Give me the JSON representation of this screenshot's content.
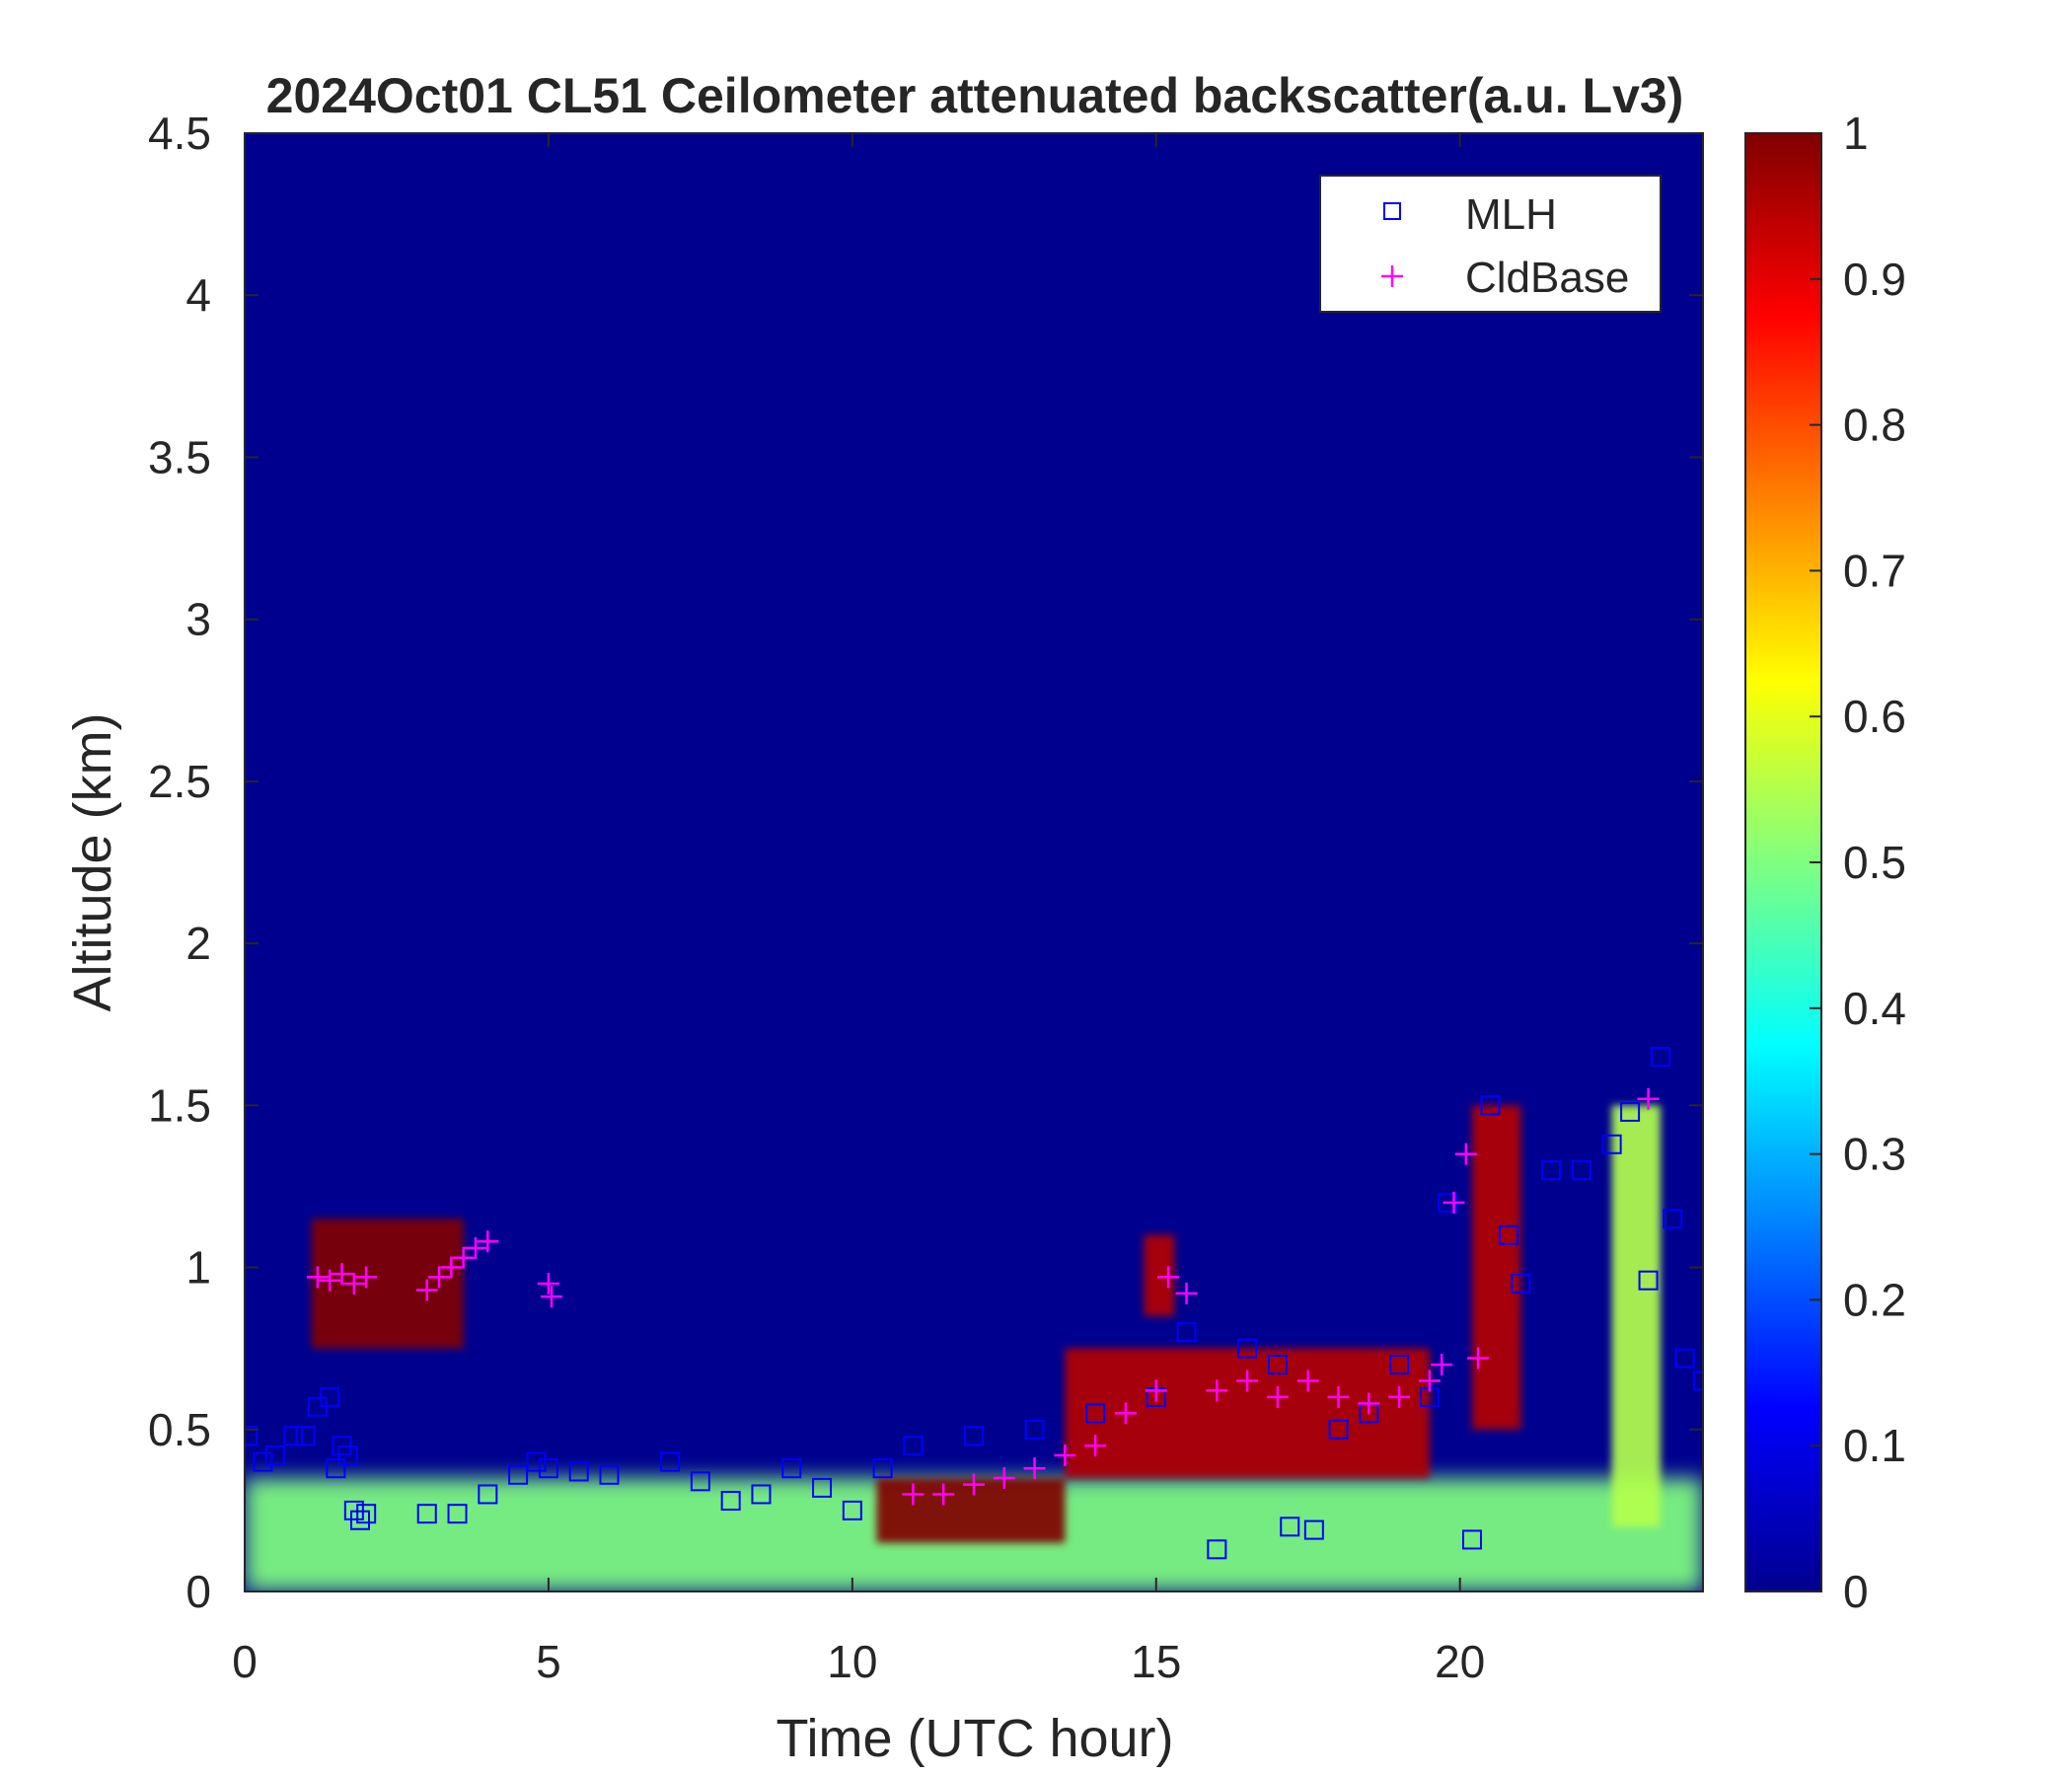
{
  "chart_data": {
    "type": "heatmap",
    "title": "2024Oct01 CL51 Ceilometer attenuated backscatter(a.u. Lv3)",
    "xlabel": "Time (UTC hour)",
    "ylabel": "Altitude (km)",
    "xlim": [
      0,
      24
    ],
    "ylim": [
      0,
      4.5
    ],
    "x_ticks": [
      "0",
      "5",
      "10",
      "15",
      "20"
    ],
    "x_tick_values": [
      0,
      5,
      10,
      15,
      20
    ],
    "y_ticks": [
      "0",
      "0.5",
      "1",
      "1.5",
      "2",
      "2.5",
      "3",
      "3.5",
      "4",
      "4.5"
    ],
    "y_tick_values": [
      0,
      0.5,
      1,
      1.5,
      2,
      2.5,
      3,
      3.5,
      4,
      4.5
    ],
    "colorbar": {
      "colormap": "jet",
      "range": [
        0,
        1
      ],
      "ticks": [
        "0",
        "0.1",
        "0.2",
        "0.3",
        "0.4",
        "0.5",
        "0.6",
        "0.7",
        "0.8",
        "0.9",
        "1"
      ],
      "tick_values": [
        0,
        0.1,
        0.2,
        0.3,
        0.4,
        0.5,
        0.6,
        0.7,
        0.8,
        0.9,
        1
      ]
    },
    "legend": {
      "placement": "top-right",
      "entries": [
        {
          "label": "MLH",
          "marker": "square",
          "color": "#0000ff"
        },
        {
          "label": "CldBase",
          "marker": "plus",
          "color": "#ff00ff"
        }
      ]
    },
    "backscatter_features": [
      {
        "t": [
          0,
          24
        ],
        "z": [
          0,
          0.35
        ],
        "level": 0.5
      },
      {
        "t": [
          1.1,
          3.6
        ],
        "z": [
          0.75,
          1.15
        ],
        "level": 1.0
      },
      {
        "t": [
          10.4,
          13.5
        ],
        "z": [
          0.15,
          0.35
        ],
        "level": 1.0
      },
      {
        "t": [
          13.5,
          19.5
        ],
        "z": [
          0.35,
          0.75
        ],
        "level": 0.95
      },
      {
        "t": [
          14.8,
          15.3
        ],
        "z": [
          0.85,
          1.1
        ],
        "level": 0.95
      },
      {
        "t": [
          20.2,
          21.0
        ],
        "z": [
          0.5,
          1.5
        ],
        "level": 0.95
      },
      {
        "t": [
          22.5,
          23.3
        ],
        "z": [
          0.2,
          1.5
        ],
        "level": 0.55
      }
    ],
    "series": [
      {
        "name": "MLH",
        "marker": "square",
        "color": "#0000ff",
        "x": [
          0.05,
          0.3,
          0.5,
          0.8,
          1.0,
          1.2,
          1.4,
          1.5,
          1.6,
          1.7,
          1.8,
          1.9,
          2.0,
          3.0,
          3.5,
          4.0,
          4.5,
          4.8,
          5.0,
          5.5,
          6.0,
          7.0,
          7.5,
          8.0,
          8.5,
          9.0,
          9.5,
          10.0,
          10.5,
          11.0,
          12.0,
          13.0,
          14.0,
          15.0,
          15.5,
          16.0,
          16.5,
          17.0,
          17.2,
          17.6,
          18.0,
          18.5,
          19.0,
          19.5,
          19.8,
          20.2,
          20.5,
          20.8,
          21.0,
          21.5,
          22.0,
          22.5,
          22.8,
          23.1,
          23.3,
          23.5,
          23.7,
          24.0
        ],
        "y": [
          0.48,
          0.4,
          0.42,
          0.48,
          0.48,
          0.57,
          0.6,
          0.38,
          0.45,
          0.42,
          0.25,
          0.22,
          0.24,
          0.24,
          0.24,
          0.3,
          0.36,
          0.4,
          0.38,
          0.37,
          0.36,
          0.4,
          0.34,
          0.28,
          0.3,
          0.38,
          0.32,
          0.25,
          0.38,
          0.45,
          0.48,
          0.5,
          0.55,
          0.6,
          0.8,
          0.13,
          0.75,
          0.7,
          0.2,
          0.19,
          0.5,
          0.55,
          0.7,
          0.6,
          1.2,
          0.16,
          1.5,
          1.1,
          0.95,
          1.3,
          1.3,
          1.38,
          1.48,
          0.96,
          1.65,
          1.15,
          0.72,
          0.65
        ]
      },
      {
        "name": "CldBase",
        "marker": "plus",
        "color": "#ff00ff",
        "x": [
          1.2,
          1.4,
          1.6,
          1.8,
          2.0,
          3.0,
          3.2,
          3.4,
          3.6,
          3.8,
          4.0,
          5.0,
          5.05,
          11.0,
          11.5,
          12.0,
          12.5,
          13.0,
          13.5,
          14.0,
          14.5,
          15.0,
          15.2,
          15.5,
          16.0,
          16.5,
          17.0,
          17.5,
          18.0,
          18.5,
          19.0,
          19.5,
          19.7,
          19.9,
          20.1,
          20.3,
          23.1
        ],
        "y": [
          0.97,
          0.96,
          0.98,
          0.95,
          0.97,
          0.93,
          0.97,
          1.0,
          1.03,
          1.06,
          1.08,
          0.95,
          0.91,
          0.3,
          0.3,
          0.33,
          0.35,
          0.38,
          0.42,
          0.45,
          0.55,
          0.62,
          0.97,
          0.92,
          0.62,
          0.65,
          0.6,
          0.65,
          0.6,
          0.58,
          0.6,
          0.65,
          0.7,
          1.2,
          1.35,
          0.72,
          1.52
        ]
      }
    ]
  }
}
